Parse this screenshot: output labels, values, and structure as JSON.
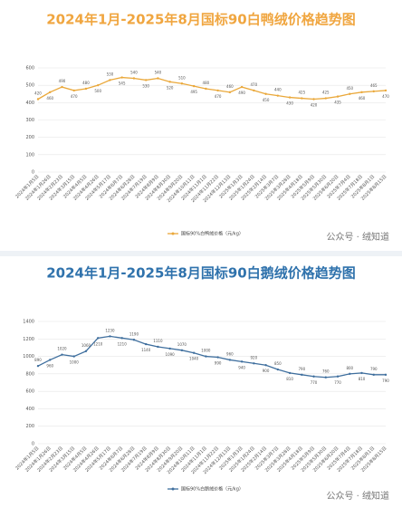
{
  "chart_data": [
    {
      "type": "line",
      "title": "2024年1月-2025年8月国标90白鸭绒价格趋势图",
      "title_color": "#f0a640",
      "categories": [
        "2024年1月5日",
        "2024年1月26日",
        "2024年2月23日",
        "2024年3月15日",
        "2024年4月5日",
        "2024年4月26日",
        "2024年5月17日",
        "2024年6月7日",
        "2024年6月28日",
        "2024年7月19日",
        "2024年8月9日",
        "2024年8月30日",
        "2024年9月20日",
        "2024年10月11日",
        "2024年11月1日",
        "2024年11月22日",
        "2024年12月13日",
        "2025年1月3日",
        "2025年1月24日",
        "2025年2月14日",
        "2025年3月7日",
        "2025年3月28日",
        "2025年4月18日",
        "2025年5月9日",
        "2025年5月30日",
        "2025年6月20日",
        "2025年7月4日",
        "2025年7月18日",
        "2025年8月1日",
        "2025年8月15日"
      ],
      "series": [
        {
          "name": "国标90%白鸭绒价格（元/kg）",
          "color": "#eaa83a",
          "values": [
            420,
            460,
            490,
            470,
            480,
            500,
            530,
            545,
            540,
            530,
            540,
            520,
            510,
            495,
            480,
            470,
            460,
            490,
            470,
            450,
            440,
            430,
            425,
            420,
            425,
            435,
            450,
            460,
            465,
            470
          ]
        }
      ],
      "ylim": [
        0,
        600
      ],
      "yticks": [
        0,
        100,
        200,
        300,
        400,
        500,
        600
      ],
      "grid": true,
      "legend": "bottom",
      "watermark": "公众号 · 绒知道"
    },
    {
      "type": "line",
      "title": "2024年1月-2025年8月国标90白鹅绒价格趋势图",
      "title_color": "#2f72ac",
      "categories": [
        "2024年1月5日",
        "2024年1月26日",
        "2024年2月23日",
        "2024年3月15日",
        "2024年4月5日",
        "2024年4月26日",
        "2024年5月17日",
        "2024年6月7日",
        "2024年6月28日",
        "2024年7月19日",
        "2024年8月9日",
        "2024年8月30日",
        "2024年9月20日",
        "2024年10月11日",
        "2024年11月1日",
        "2024年11月22日",
        "2024年12月13日",
        "2025年1月3日",
        "2025年1月24日",
        "2025年2月14日",
        "2025年3月7日",
        "2025年3月28日",
        "2025年4月18日",
        "2025年5月9日",
        "2025年5月30日",
        "2025年6月20日",
        "2025年7月4日",
        "2025年7月18日",
        "2025年8月1日",
        "2025年8月15日"
      ],
      "series": [
        {
          "name": "国标90%白鹅绒价格（元/kg）",
          "color": "#3f6f9e",
          "values": [
            890,
            960,
            1020,
            1000,
            1060,
            1210,
            1230,
            1210,
            1190,
            1140,
            1110,
            1090,
            1070,
            1040,
            1000,
            990,
            960,
            940,
            920,
            900,
            850,
            810,
            790,
            770,
            760,
            770,
            800,
            810,
            790,
            790
          ]
        }
      ],
      "ylim": [
        0,
        1400
      ],
      "yticks": [
        0,
        200,
        400,
        600,
        800,
        1000,
        1200,
        1400
      ],
      "grid": true,
      "legend": "bottom",
      "watermark": "公众号 · 绒知道"
    }
  ]
}
